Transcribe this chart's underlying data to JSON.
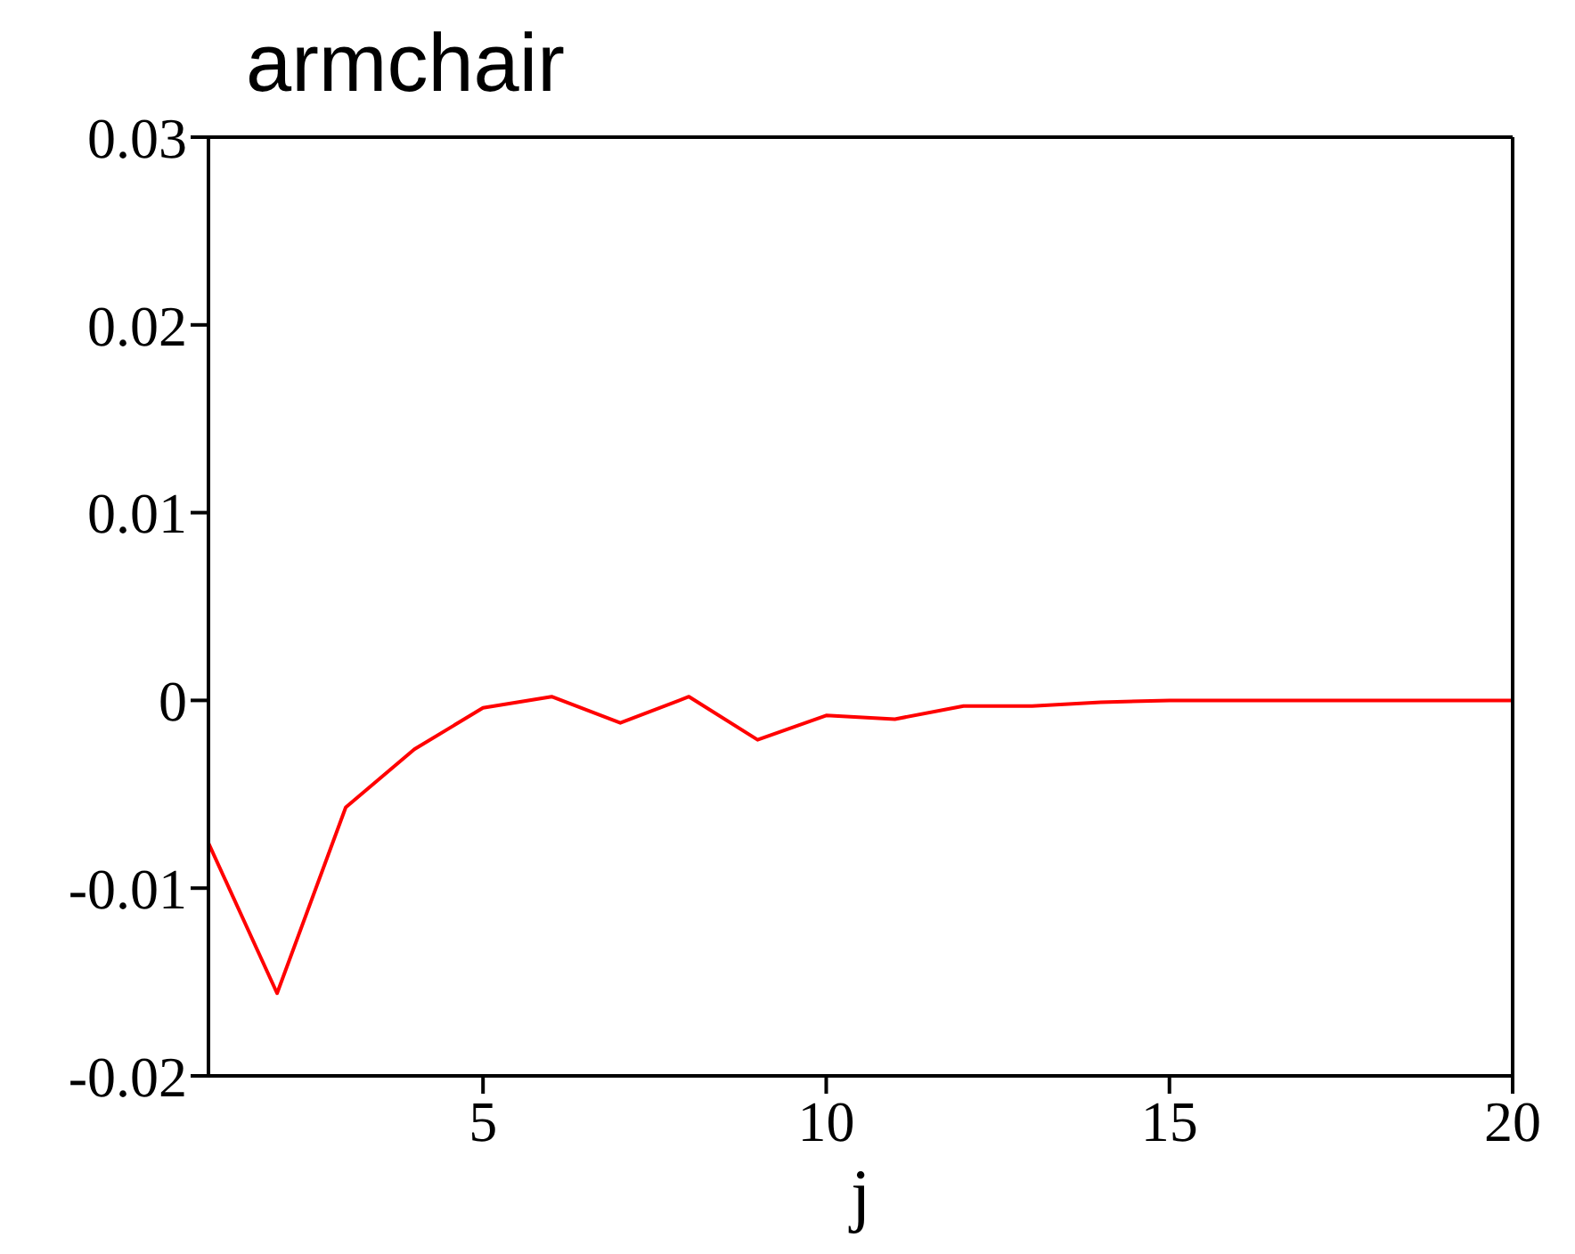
{
  "chart_data": {
    "type": "line",
    "title": "armchair",
    "xlabel": "j",
    "x": [
      1,
      2,
      3,
      4,
      5,
      6,
      7,
      8,
      9,
      10,
      11,
      12,
      13,
      14,
      15,
      16,
      17,
      18,
      19,
      20
    ],
    "series": [
      {
        "color": "#ff0000",
        "values": [
          -0.0076,
          -0.0156,
          -0.0057,
          -0.0026,
          -0.0004,
          0.0002,
          -0.0012,
          0.0002,
          -0.0021,
          -0.0008,
          -0.001,
          -0.0003,
          -0.0003,
          -0.0001,
          0,
          0,
          0,
          0,
          0,
          0
        ]
      }
    ],
    "xlim": [
      1,
      20
    ],
    "xticks": [
      5,
      10,
      15,
      20
    ],
    "ylim": [
      -0.02,
      0.03
    ],
    "yticks": [
      -0.02,
      -0.01,
      0,
      0.01,
      0.02,
      0.03
    ],
    "grid": false,
    "legend": false,
    "marker": "none",
    "line_style": "solid"
  }
}
